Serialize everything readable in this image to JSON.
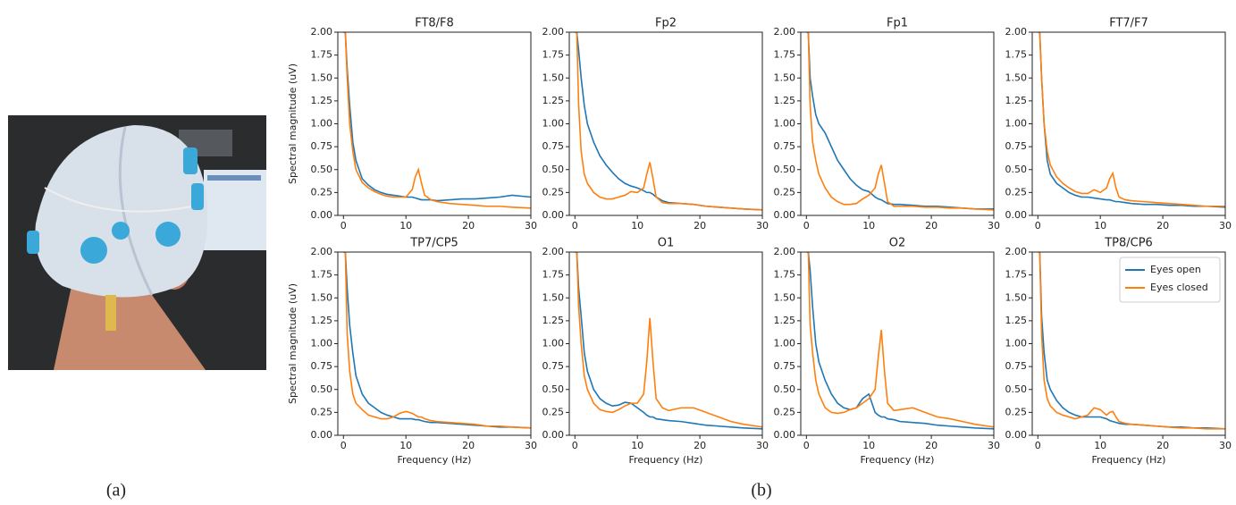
{
  "figure_labels": [
    "(a)",
    "(b)"
  ],
  "chart_data": [
    {
      "type": "line",
      "title": "FT8/F8",
      "ylabel": "Spectral magnitude (uV)",
      "x": [
        0,
        0.3,
        0.6,
        1,
        1.5,
        2,
        3,
        4,
        5,
        6,
        7,
        8,
        9,
        10,
        11,
        11.5,
        12,
        12.5,
        13,
        14,
        15,
        17,
        19,
        21,
        23,
        25,
        27,
        30
      ],
      "series": [
        {
          "color": "#1f77b4",
          "values": [
            2,
            2,
            1.6,
            1.2,
            0.8,
            0.6,
            0.4,
            0.33,
            0.28,
            0.25,
            0.23,
            0.22,
            0.21,
            0.2,
            0.2,
            0.19,
            0.18,
            0.17,
            0.17,
            0.17,
            0.16,
            0.17,
            0.18,
            0.18,
            0.19,
            0.2,
            0.22,
            0.2
          ]
        },
        {
          "color": "#ff7f0e",
          "values": [
            2,
            2,
            1.5,
            1,
            0.7,
            0.5,
            0.36,
            0.3,
            0.26,
            0.23,
            0.21,
            0.2,
            0.2,
            0.2,
            0.28,
            0.42,
            0.5,
            0.35,
            0.22,
            0.17,
            0.15,
            0.13,
            0.12,
            0.11,
            0.1,
            0.1,
            0.09,
            0.08
          ]
        }
      ],
      "xlim": [
        -0.9,
        30
      ],
      "ylim": [
        0,
        2
      ],
      "xticks": [
        0,
        10,
        20,
        30
      ],
      "yticks": [
        {
          "value": 0,
          "label": "0.00"
        },
        {
          "value": 0.25,
          "label": "0.25"
        },
        {
          "value": 0.5,
          "label": "0.50"
        },
        {
          "value": 0.75,
          "label": "0.75"
        },
        {
          "value": 1,
          "label": "1.00"
        },
        {
          "value": 1.25,
          "label": "1.25"
        },
        {
          "value": 1.5,
          "label": "1.50"
        },
        {
          "value": 1.75,
          "label": "1.75"
        },
        {
          "value": 2,
          "label": "2.00"
        }
      ]
    },
    {
      "type": "line",
      "title": "Fp2",
      "x": [
        0,
        0.3,
        0.6,
        1,
        1.5,
        2,
        3,
        4,
        5,
        6,
        7,
        8,
        9,
        10,
        11,
        11.5,
        12,
        12.5,
        13,
        14,
        15,
        17,
        19,
        21,
        23,
        25,
        27,
        30
      ],
      "series": [
        {
          "color": "#1f77b4",
          "values": [
            2,
            2,
            1.8,
            1.5,
            1.2,
            1,
            0.8,
            0.65,
            0.55,
            0.47,
            0.4,
            0.35,
            0.32,
            0.3,
            0.27,
            0.25,
            0.25,
            0.23,
            0.2,
            0.16,
            0.14,
            0.13,
            0.12,
            0.1,
            0.09,
            0.08,
            0.07,
            0.06
          ]
        },
        {
          "color": "#ff7f0e",
          "values": [
            2,
            2,
            1.2,
            0.7,
            0.45,
            0.35,
            0.25,
            0.2,
            0.18,
            0.18,
            0.2,
            0.22,
            0.26,
            0.25,
            0.3,
            0.45,
            0.58,
            0.4,
            0.2,
            0.14,
            0.13,
            0.13,
            0.12,
            0.1,
            0.09,
            0.08,
            0.07,
            0.06
          ]
        }
      ],
      "xlim": [
        -0.9,
        30
      ],
      "ylim": [
        0,
        2
      ],
      "xticks": [
        0,
        10,
        20,
        30
      ],
      "yticks": [
        {
          "value": 0,
          "label": "0.00"
        },
        {
          "value": 0.25,
          "label": "0.25"
        },
        {
          "value": 0.5,
          "label": "0.50"
        },
        {
          "value": 0.75,
          "label": "0.75"
        },
        {
          "value": 1,
          "label": "1.00"
        },
        {
          "value": 1.25,
          "label": "1.25"
        },
        {
          "value": 1.5,
          "label": "1.50"
        },
        {
          "value": 1.75,
          "label": "1.75"
        },
        {
          "value": 2,
          "label": "2.00"
        }
      ]
    },
    {
      "type": "line",
      "title": "Fp1",
      "x": [
        0,
        0.3,
        0.6,
        1,
        1.5,
        2,
        3,
        4,
        5,
        6,
        7,
        8,
        9,
        10,
        11,
        11.5,
        12,
        12.5,
        13,
        14,
        15,
        17,
        19,
        21,
        23,
        25,
        27,
        30
      ],
      "series": [
        {
          "color": "#1f77b4",
          "values": [
            2,
            2,
            1.5,
            1.3,
            1.1,
            1,
            0.9,
            0.75,
            0.6,
            0.5,
            0.4,
            0.33,
            0.28,
            0.26,
            0.2,
            0.18,
            0.17,
            0.15,
            0.13,
            0.12,
            0.12,
            0.11,
            0.1,
            0.1,
            0.09,
            0.08,
            0.07,
            0.07
          ]
        },
        {
          "color": "#ff7f0e",
          "values": [
            2,
            2,
            1.2,
            0.8,
            0.6,
            0.45,
            0.3,
            0.2,
            0.15,
            0.12,
            0.12,
            0.13,
            0.18,
            0.22,
            0.3,
            0.45,
            0.55,
            0.35,
            0.15,
            0.1,
            0.1,
            0.1,
            0.09,
            0.09,
            0.08,
            0.08,
            0.07,
            0.06
          ]
        }
      ],
      "xlim": [
        -0.9,
        30
      ],
      "ylim": [
        0,
        2
      ],
      "xticks": [
        0,
        10,
        20,
        30
      ],
      "yticks": [
        {
          "value": 0,
          "label": "0.00"
        },
        {
          "value": 0.25,
          "label": "0.25"
        },
        {
          "value": 0.5,
          "label": "0.50"
        },
        {
          "value": 0.75,
          "label": "0.75"
        },
        {
          "value": 1,
          "label": "1.00"
        },
        {
          "value": 1.25,
          "label": "1.25"
        },
        {
          "value": 1.5,
          "label": "1.50"
        },
        {
          "value": 1.75,
          "label": "1.75"
        },
        {
          "value": 2,
          "label": "2.00"
        }
      ]
    },
    {
      "type": "line",
      "title": "FT7/F7",
      "x": [
        0,
        0.3,
        0.6,
        1,
        1.5,
        2,
        3,
        4,
        5,
        6,
        7,
        8,
        9,
        10,
        11,
        11.5,
        12,
        12.5,
        13,
        14,
        15,
        17,
        19,
        21,
        23,
        25,
        27,
        30
      ],
      "series": [
        {
          "color": "#1f77b4",
          "values": [
            2,
            2,
            1.5,
            1,
            0.6,
            0.45,
            0.35,
            0.3,
            0.25,
            0.22,
            0.2,
            0.2,
            0.19,
            0.18,
            0.17,
            0.17,
            0.16,
            0.15,
            0.15,
            0.14,
            0.13,
            0.12,
            0.12,
            0.11,
            0.11,
            0.1,
            0.1,
            0.09
          ]
        },
        {
          "color": "#ff7f0e",
          "values": [
            2,
            2,
            1.5,
            1,
            0.7,
            0.55,
            0.42,
            0.35,
            0.3,
            0.26,
            0.24,
            0.24,
            0.28,
            0.25,
            0.3,
            0.4,
            0.46,
            0.3,
            0.2,
            0.17,
            0.16,
            0.15,
            0.14,
            0.13,
            0.12,
            0.11,
            0.1,
            0.1
          ]
        }
      ],
      "xlim": [
        -0.9,
        30
      ],
      "ylim": [
        0,
        2
      ],
      "xticks": [
        0,
        10,
        20,
        30
      ],
      "yticks": [
        {
          "value": 0,
          "label": "0.00"
        },
        {
          "value": 0.25,
          "label": "0.25"
        },
        {
          "value": 0.5,
          "label": "0.50"
        },
        {
          "value": 0.75,
          "label": "0.75"
        },
        {
          "value": 1,
          "label": "1.00"
        },
        {
          "value": 1.25,
          "label": "1.25"
        },
        {
          "value": 1.5,
          "label": "1.50"
        },
        {
          "value": 1.75,
          "label": "1.75"
        },
        {
          "value": 2,
          "label": "2.00"
        }
      ]
    },
    {
      "type": "line",
      "title": "TP7/CP5",
      "ylabel": "Spectral magnitude (uV)",
      "xlabel": "Frequency (Hz)",
      "x": [
        0,
        0.3,
        0.6,
        1,
        1.5,
        2,
        3,
        4,
        5,
        6,
        7,
        8,
        9,
        10,
        11,
        11.5,
        12,
        12.5,
        13,
        14,
        15,
        17,
        19,
        21,
        23,
        25,
        27,
        30
      ],
      "series": [
        {
          "color": "#1f77b4",
          "values": [
            2,
            2,
            1.6,
            1.2,
            0.9,
            0.65,
            0.45,
            0.35,
            0.3,
            0.25,
            0.22,
            0.2,
            0.18,
            0.18,
            0.18,
            0.17,
            0.17,
            0.16,
            0.15,
            0.14,
            0.14,
            0.13,
            0.12,
            0.11,
            0.1,
            0.09,
            0.09,
            0.08
          ]
        },
        {
          "color": "#ff7f0e",
          "values": [
            2,
            2,
            1.1,
            0.7,
            0.45,
            0.35,
            0.28,
            0.22,
            0.2,
            0.18,
            0.18,
            0.2,
            0.24,
            0.26,
            0.24,
            0.22,
            0.2,
            0.2,
            0.18,
            0.16,
            0.15,
            0.14,
            0.13,
            0.12,
            0.1,
            0.1,
            0.09,
            0.08
          ]
        }
      ],
      "xlim": [
        -0.9,
        30
      ],
      "ylim": [
        0,
        2
      ],
      "xticks": [
        0,
        10,
        20,
        30
      ],
      "yticks": [
        {
          "value": 0,
          "label": "0.00"
        },
        {
          "value": 0.25,
          "label": "0.25"
        },
        {
          "value": 0.5,
          "label": "0.50"
        },
        {
          "value": 0.75,
          "label": "0.75"
        },
        {
          "value": 1,
          "label": "1.00"
        },
        {
          "value": 1.25,
          "label": "1.25"
        },
        {
          "value": 1.5,
          "label": "1.50"
        },
        {
          "value": 1.75,
          "label": "1.75"
        },
        {
          "value": 2,
          "label": "2.00"
        }
      ]
    },
    {
      "type": "line",
      "title": "O1",
      "xlabel": "Frequency (Hz)",
      "x": [
        0,
        0.3,
        0.6,
        1,
        1.5,
        2,
        3,
        4,
        5,
        6,
        7,
        8,
        9,
        10,
        11,
        11.5,
        12,
        12.5,
        13,
        14,
        15,
        17,
        19,
        21,
        23,
        25,
        27,
        30
      ],
      "series": [
        {
          "color": "#1f77b4",
          "values": [
            2,
            2,
            1.6,
            1.3,
            0.9,
            0.7,
            0.5,
            0.4,
            0.35,
            0.32,
            0.33,
            0.36,
            0.35,
            0.3,
            0.25,
            0.22,
            0.2,
            0.2,
            0.18,
            0.17,
            0.16,
            0.15,
            0.13,
            0.11,
            0.1,
            0.09,
            0.08,
            0.07
          ]
        },
        {
          "color": "#ff7f0e",
          "values": [
            2,
            2,
            1.4,
            1,
            0.65,
            0.5,
            0.35,
            0.28,
            0.26,
            0.25,
            0.28,
            0.32,
            0.35,
            0.35,
            0.45,
            0.8,
            1.28,
            0.8,
            0.4,
            0.3,
            0.27,
            0.3,
            0.3,
            0.25,
            0.2,
            0.15,
            0.12,
            0.09
          ]
        }
      ],
      "xlim": [
        -0.9,
        30
      ],
      "ylim": [
        0,
        2
      ],
      "xticks": [
        0,
        10,
        20,
        30
      ],
      "yticks": [
        {
          "value": 0,
          "label": "0.00"
        },
        {
          "value": 0.25,
          "label": "0.25"
        },
        {
          "value": 0.5,
          "label": "0.50"
        },
        {
          "value": 0.75,
          "label": "0.75"
        },
        {
          "value": 1,
          "label": "1.00"
        },
        {
          "value": 1.25,
          "label": "1.25"
        },
        {
          "value": 1.5,
          "label": "1.50"
        },
        {
          "value": 1.75,
          "label": "1.75"
        },
        {
          "value": 2,
          "label": "2.00"
        }
      ]
    },
    {
      "type": "line",
      "title": "O2",
      "xlabel": "Frequency (Hz)",
      "x": [
        0,
        0.3,
        0.6,
        1,
        1.5,
        2,
        3,
        4,
        5,
        6,
        7,
        8,
        9,
        10,
        11,
        11.5,
        12,
        12.5,
        13,
        14,
        15,
        17,
        19,
        21,
        23,
        25,
        27,
        30
      ],
      "series": [
        {
          "color": "#1f77b4",
          "values": [
            2,
            2,
            1.8,
            1.4,
            1,
            0.8,
            0.6,
            0.45,
            0.35,
            0.3,
            0.28,
            0.3,
            0.4,
            0.45,
            0.25,
            0.22,
            0.2,
            0.2,
            0.18,
            0.17,
            0.15,
            0.14,
            0.13,
            0.11,
            0.1,
            0.09,
            0.08,
            0.07
          ]
        },
        {
          "color": "#ff7f0e",
          "values": [
            2,
            2,
            1.2,
            0.9,
            0.6,
            0.45,
            0.3,
            0.25,
            0.24,
            0.25,
            0.28,
            0.3,
            0.35,
            0.4,
            0.5,
            0.85,
            1.15,
            0.7,
            0.35,
            0.27,
            0.28,
            0.3,
            0.25,
            0.2,
            0.18,
            0.15,
            0.12,
            0.09
          ]
        }
      ],
      "xlim": [
        -0.9,
        30
      ],
      "ylim": [
        0,
        2
      ],
      "xticks": [
        0,
        10,
        20,
        30
      ],
      "yticks": [
        {
          "value": 0,
          "label": "0.00"
        },
        {
          "value": 0.25,
          "label": "0.25"
        },
        {
          "value": 0.5,
          "label": "0.50"
        },
        {
          "value": 0.75,
          "label": "0.75"
        },
        {
          "value": 1,
          "label": "1.00"
        },
        {
          "value": 1.25,
          "label": "1.25"
        },
        {
          "value": 1.5,
          "label": "1.50"
        },
        {
          "value": 1.75,
          "label": "1.75"
        },
        {
          "value": 2,
          "label": "2.00"
        }
      ]
    },
    {
      "type": "line",
      "title": "TP8/CP6",
      "xlabel": "Frequency (Hz)",
      "legend": "upper right",
      "x": [
        0,
        0.3,
        0.6,
        1,
        1.5,
        2,
        3,
        4,
        5,
        6,
        7,
        8,
        9,
        10,
        11,
        11.5,
        12,
        12.5,
        13,
        14,
        15,
        17,
        19,
        21,
        23,
        25,
        27,
        30
      ],
      "series": [
        {
          "name": "Eyes open",
          "color": "#1f77b4",
          "values": [
            2,
            2,
            1.3,
            0.9,
            0.6,
            0.5,
            0.38,
            0.3,
            0.25,
            0.22,
            0.2,
            0.2,
            0.2,
            0.2,
            0.18,
            0.16,
            0.15,
            0.14,
            0.13,
            0.12,
            0.12,
            0.11,
            0.1,
            0.09,
            0.09,
            0.08,
            0.08,
            0.07
          ]
        },
        {
          "name": "Eyes closed",
          "color": "#ff7f0e",
          "values": [
            2,
            2,
            1.1,
            0.6,
            0.4,
            0.32,
            0.25,
            0.22,
            0.2,
            0.18,
            0.2,
            0.22,
            0.3,
            0.28,
            0.22,
            0.25,
            0.26,
            0.2,
            0.15,
            0.13,
            0.12,
            0.11,
            0.1,
            0.09,
            0.08,
            0.08,
            0.07,
            0.07
          ]
        }
      ],
      "xlim": [
        -0.9,
        30
      ],
      "ylim": [
        0,
        2
      ],
      "xticks": [
        0,
        10,
        20,
        30
      ],
      "yticks": [
        {
          "value": 0,
          "label": "0.00"
        },
        {
          "value": 0.25,
          "label": "0.25"
        },
        {
          "value": 0.5,
          "label": "0.50"
        },
        {
          "value": 0.75,
          "label": "0.75"
        },
        {
          "value": 1,
          "label": "1.00"
        },
        {
          "value": 1.25,
          "label": "1.25"
        },
        {
          "value": 1.5,
          "label": "1.50"
        },
        {
          "value": 1.75,
          "label": "1.75"
        },
        {
          "value": 2,
          "label": "2.00"
        }
      ]
    }
  ]
}
